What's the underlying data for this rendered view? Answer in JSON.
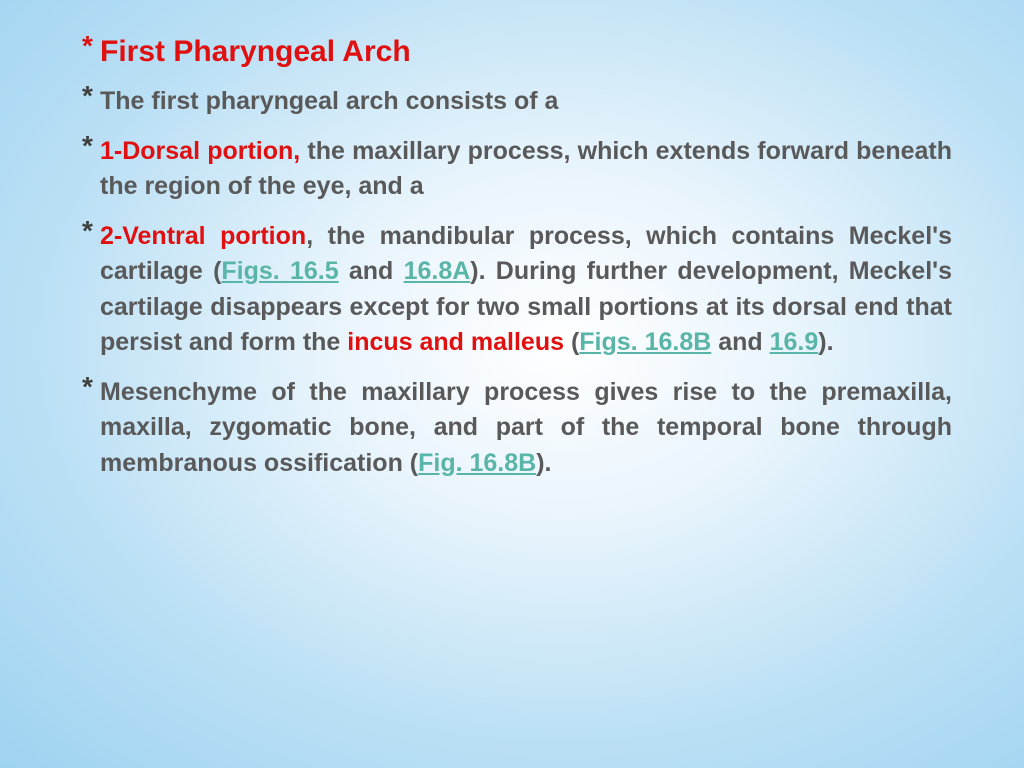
{
  "colors": {
    "background_gradient_center": "#ffffff",
    "background_gradient_outer": "#9ed3f0",
    "title_color": "#e01010",
    "body_text_color": "#595959",
    "highlight_color": "#e01010",
    "link_color": "#5ab5a9",
    "bullet_color": "#404040"
  },
  "typography": {
    "title_fontsize": 30,
    "body_fontsize": 25,
    "font_weight": "bold",
    "font_family": "Trebuchet MS / Comic Sans style"
  },
  "bullets": [
    {
      "type": "title",
      "text": "First Pharyngeal Arch"
    },
    {
      "type": "body",
      "text": "The first pharyngeal arch consists of a"
    },
    {
      "type": "body_justify",
      "segments": [
        {
          "style": "red",
          "text": "1-Dorsal portion, "
        },
        {
          "style": "norm",
          "text": "the maxillary process, which extends forward beneath the region of the eye, and a"
        }
      ]
    },
    {
      "type": "body_justify",
      "segments": [
        {
          "style": "red",
          "text": "2-Ventral portion"
        },
        {
          "style": "norm",
          "text": ", the mandibular process, which contains Meckel's cartilage ("
        },
        {
          "style": "link",
          "text": "Figs. 16.5"
        },
        {
          "style": "norm",
          "text": " and "
        },
        {
          "style": "link",
          "text": "16.8A"
        },
        {
          "style": "norm",
          "text": "). During further development, Meckel's cartilage disappears except for two small portions at its dorsal end that persist and form the "
        },
        {
          "style": "red",
          "text": "incus and malleus "
        },
        {
          "style": "norm",
          "text": "("
        },
        {
          "style": "link",
          "text": "Figs. 16.8B"
        },
        {
          "style": "norm",
          "text": " and "
        },
        {
          "style": "link",
          "text": "16.9"
        },
        {
          "style": "norm",
          "text": ")."
        }
      ]
    },
    {
      "type": "body_justify",
      "segments": [
        {
          "style": "norm",
          "text": "Mesenchyme of the maxillary process gives rise to the premaxilla, maxilla, zygomatic bone, and part of the temporal bone through membranous ossification ("
        },
        {
          "style": "link",
          "text": "Fig. 16.8B"
        },
        {
          "style": "norm",
          "text": ")."
        }
      ]
    }
  ]
}
